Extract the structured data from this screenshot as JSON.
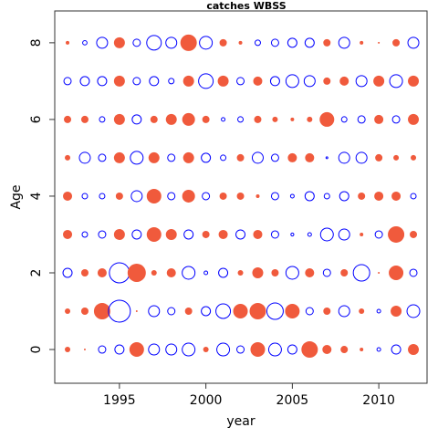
{
  "chart_data": {
    "type": "bubble",
    "title": "catches WBSS",
    "x_label": "year",
    "y_label": "Age",
    "x": [
      1992,
      1993,
      1994,
      1995,
      1996,
      1997,
      1998,
      1999,
      2000,
      2001,
      2002,
      2003,
      2004,
      2005,
      2006,
      2007,
      2008,
      2009,
      2010,
      2011,
      2012
    ],
    "y": [
      0,
      1,
      2,
      3,
      4,
      5,
      6,
      7,
      8
    ],
    "values": [
      [
        0.75,
        0.25,
        -1,
        -1.25,
        2,
        -1.5,
        -1.5,
        -1.75,
        0.75,
        -1.75,
        -1,
        2,
        -1.75,
        -1.25,
        2.25,
        1.25,
        1,
        0.5,
        -0.5,
        -1.25,
        1.5
      ],
      [
        0.75,
        1,
        2.25,
        -3,
        0.25,
        -1.5,
        -1,
        1,
        -1.25,
        -2,
        2,
        2.25,
        -2.25,
        2,
        -1,
        1,
        -1.5,
        0.75,
        -0.5,
        1.5,
        -1.75
      ],
      [
        -1.25,
        1,
        1.25,
        -2.75,
        2.5,
        0.75,
        1.25,
        -1.75,
        -0.5,
        -1.25,
        0.75,
        1.5,
        1,
        -1.75,
        1.25,
        -1,
        1,
        -2.25,
        0.25,
        2,
        -1
      ],
      [
        1.25,
        -0.75,
        -1,
        1.5,
        -1.25,
        2,
        1.5,
        -1.25,
        1,
        1.25,
        -1.25,
        1.25,
        -1,
        -0.4,
        -0.5,
        -1.75,
        -1.5,
        0.5,
        -1,
        2.25,
        1
      ],
      [
        1.25,
        -0.75,
        -0.75,
        1,
        -1.5,
        2,
        -1,
        1.75,
        -1,
        1,
        1,
        0.5,
        -1,
        -0.5,
        -1.25,
        -0.75,
        -1.25,
        1,
        1.25,
        1.25,
        -0.75
      ],
      [
        0.75,
        -1.5,
        -1,
        1.5,
        -1.75,
        1.5,
        -1,
        1.5,
        -1.25,
        -0.75,
        1,
        -1.5,
        -1,
        1.25,
        1.25,
        -0.25,
        -1.5,
        -1.5,
        1,
        0.75,
        0.75
      ],
      [
        1,
        1,
        -0.75,
        1.5,
        -1.25,
        1,
        1.5,
        1.75,
        1,
        -0.5,
        -0.75,
        1,
        0.75,
        0.5,
        0.75,
        2,
        -0.75,
        -1,
        1.25,
        -1,
        1.5
      ],
      [
        -1,
        -1.25,
        -1.25,
        1.5,
        -1,
        -1.25,
        -0.75,
        1.5,
        -2,
        1.5,
        -1,
        1.25,
        -1.25,
        -1.75,
        -1.5,
        1,
        1.25,
        -1.5,
        1.5,
        -1.75,
        1.5
      ],
      [
        0.5,
        -0.6,
        -1.5,
        1.5,
        -1,
        -2,
        -1.5,
        2.25,
        -1.75,
        1,
        0.5,
        -0.75,
        -1,
        -1.25,
        -1.25,
        1,
        -1.5,
        0.5,
        0.25,
        1,
        -1.5
      ]
    ],
    "positive_color": "#f05a3c",
    "negative_color": "#0000ff",
    "xlim": [
      1991.26,
      2012.79
    ],
    "ylim": [
      -0.88,
      8.83
    ],
    "xticks": [
      1995,
      2000,
      2005,
      2010
    ],
    "yticks": [
      0,
      2,
      4,
      6,
      8
    ]
  }
}
